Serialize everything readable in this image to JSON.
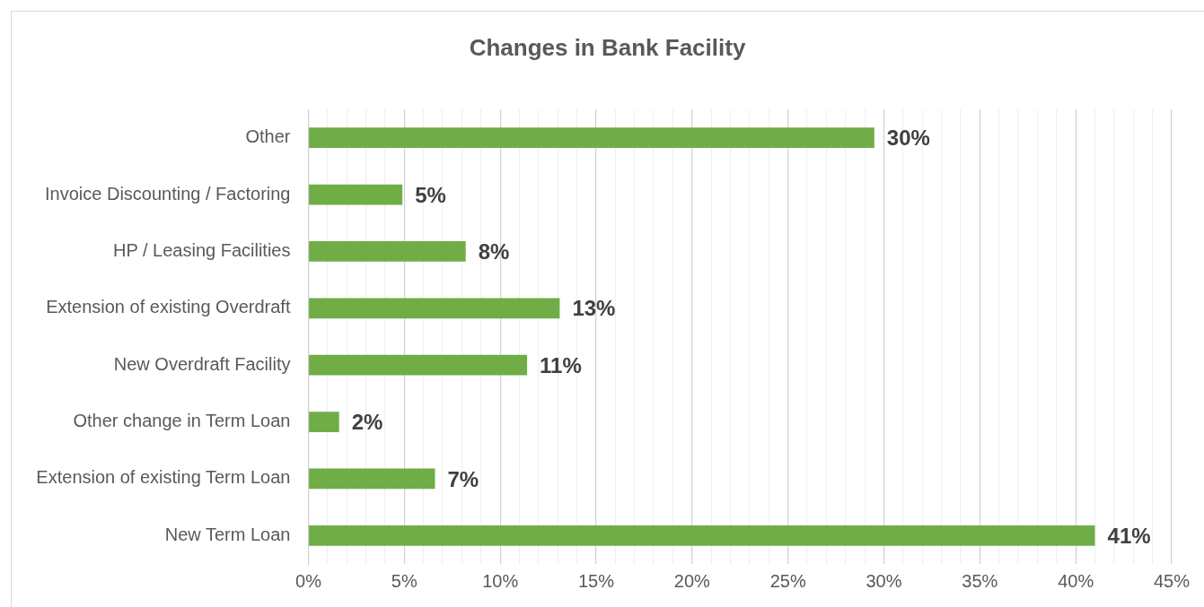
{
  "chart_data": {
    "type": "bar",
    "orientation": "horizontal",
    "title": "Changes in Bank Facility",
    "categories": [
      "Other",
      "Invoice Discounting / Factoring",
      "HP / Leasing Facilities",
      "Extension of existing Overdraft",
      "New Overdraft Facility",
      "Other change in Term Loan",
      "Extension of existing Term Loan",
      "New Term Loan"
    ],
    "values": [
      29.5,
      4.9,
      8.2,
      13.1,
      11.4,
      1.6,
      6.6,
      41.0
    ],
    "value_labels": [
      "30%",
      "5%",
      "8%",
      "13%",
      "11%",
      "2%",
      "7%",
      "41%"
    ],
    "color": "#70ad47",
    "xlim": [
      0,
      45
    ],
    "xticks": [
      {
        "value": 0,
        "label": "0%"
      },
      {
        "value": 1,
        "label": null
      },
      {
        "value": 2,
        "label": null
      },
      {
        "value": 3,
        "label": null
      },
      {
        "value": 4,
        "label": null
      },
      {
        "value": 5,
        "label": "5%"
      },
      {
        "value": 6,
        "label": null
      },
      {
        "value": 7,
        "label": null
      },
      {
        "value": 8,
        "label": null
      },
      {
        "value": 9,
        "label": null
      },
      {
        "value": 10,
        "label": "10%"
      },
      {
        "value": 11,
        "label": null
      },
      {
        "value": 12,
        "label": null
      },
      {
        "value": 13,
        "label": null
      },
      {
        "value": 14,
        "label": null
      },
      {
        "value": 15,
        "label": "15%"
      },
      {
        "value": 16,
        "label": null
      },
      {
        "value": 17,
        "label": null
      },
      {
        "value": 18,
        "label": null
      },
      {
        "value": 19,
        "label": null
      },
      {
        "value": 20,
        "label": "20%"
      },
      {
        "value": 21,
        "label": null
      },
      {
        "value": 22,
        "label": null
      },
      {
        "value": 23,
        "label": null
      },
      {
        "value": 24,
        "label": null
      },
      {
        "value": 25,
        "label": "25%"
      },
      {
        "value": 26,
        "label": null
      },
      {
        "value": 27,
        "label": null
      },
      {
        "value": 28,
        "label": null
      },
      {
        "value": 29,
        "label": null
      },
      {
        "value": 30,
        "label": "30%"
      },
      {
        "value": 31,
        "label": null
      },
      {
        "value": 32,
        "label": null
      },
      {
        "value": 33,
        "label": null
      },
      {
        "value": 34,
        "label": null
      },
      {
        "value": 35,
        "label": "35%"
      },
      {
        "value": 36,
        "label": null
      },
      {
        "value": 37,
        "label": null
      },
      {
        "value": 38,
        "label": null
      },
      {
        "value": 39,
        "label": null
      },
      {
        "value": 40,
        "label": "40%"
      },
      {
        "value": 41,
        "label": null
      },
      {
        "value": 42,
        "label": null
      },
      {
        "value": 43,
        "label": null
      },
      {
        "value": 44,
        "label": null
      },
      {
        "value": 45,
        "label": "45%"
      }
    ],
    "grid": "x",
    "legend": false
  }
}
